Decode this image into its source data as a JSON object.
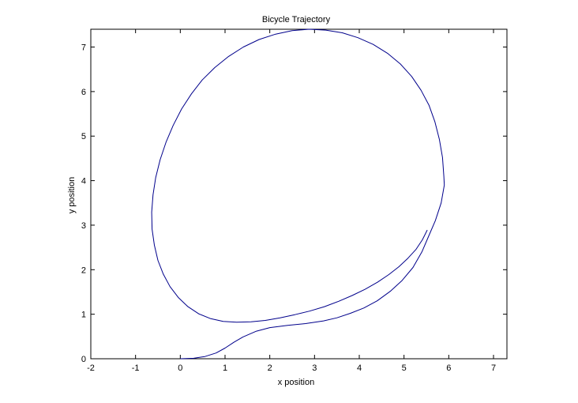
{
  "chart_data": {
    "type": "line",
    "title": "Bicycle Trajectory",
    "xlabel": "x position",
    "ylabel": "y position",
    "xlim": [
      -2,
      7.3
    ],
    "ylim": [
      0,
      7.4
    ],
    "xticks": [
      -2,
      -1,
      0,
      1,
      2,
      3,
      4,
      5,
      6,
      7
    ],
    "yticks": [
      0,
      1,
      2,
      3,
      4,
      5,
      6,
      7
    ],
    "grid": false,
    "legend": "none",
    "series": [
      {
        "color": "#00008b",
        "x": [
          0.0,
          0.3,
          0.55,
          0.8,
          1.0,
          1.2,
          1.4,
          1.7,
          2.0,
          2.4,
          2.8,
          3.2,
          3.5,
          3.8,
          4.1,
          4.4,
          4.7,
          4.95,
          5.2,
          5.4,
          5.55,
          5.7,
          5.83,
          5.9,
          5.89,
          5.86,
          5.79,
          5.69,
          5.56,
          5.38,
          5.17,
          4.92,
          4.63,
          4.31,
          3.97,
          3.62,
          3.25,
          2.88,
          2.5,
          2.13,
          1.76,
          1.41,
          1.08,
          0.77,
          0.49,
          0.25,
          0.03,
          -0.16,
          -0.32,
          -0.45,
          -0.55,
          -0.61,
          -0.64,
          -0.63,
          -0.58,
          -0.5,
          -0.38,
          -0.23,
          -0.04,
          0.17,
          0.41,
          0.68,
          0.96,
          1.26,
          1.58,
          1.9,
          2.23,
          2.56,
          2.89,
          3.22,
          3.54,
          3.84,
          4.13,
          4.41,
          4.66,
          4.89,
          5.09,
          5.27,
          5.41,
          5.52
        ],
        "y": [
          0.0,
          0.01,
          0.05,
          0.13,
          0.24,
          0.37,
          0.49,
          0.62,
          0.7,
          0.75,
          0.79,
          0.85,
          0.92,
          1.02,
          1.14,
          1.3,
          1.52,
          1.75,
          2.05,
          2.4,
          2.75,
          3.1,
          3.5,
          3.9,
          4.1,
          4.52,
          4.93,
          5.32,
          5.69,
          6.03,
          6.34,
          6.62,
          6.86,
          7.06,
          7.21,
          7.32,
          7.38,
          7.4,
          7.37,
          7.29,
          7.17,
          7.0,
          6.79,
          6.54,
          6.26,
          5.95,
          5.61,
          5.24,
          4.86,
          4.47,
          4.07,
          3.68,
          3.29,
          2.91,
          2.55,
          2.21,
          1.9,
          1.62,
          1.37,
          1.17,
          1.01,
          0.9,
          0.84,
          0.82,
          0.83,
          0.86,
          0.92,
          0.99,
          1.07,
          1.17,
          1.29,
          1.42,
          1.56,
          1.72,
          1.89,
          2.07,
          2.26,
          2.46,
          2.67,
          2.89
        ]
      }
    ]
  }
}
